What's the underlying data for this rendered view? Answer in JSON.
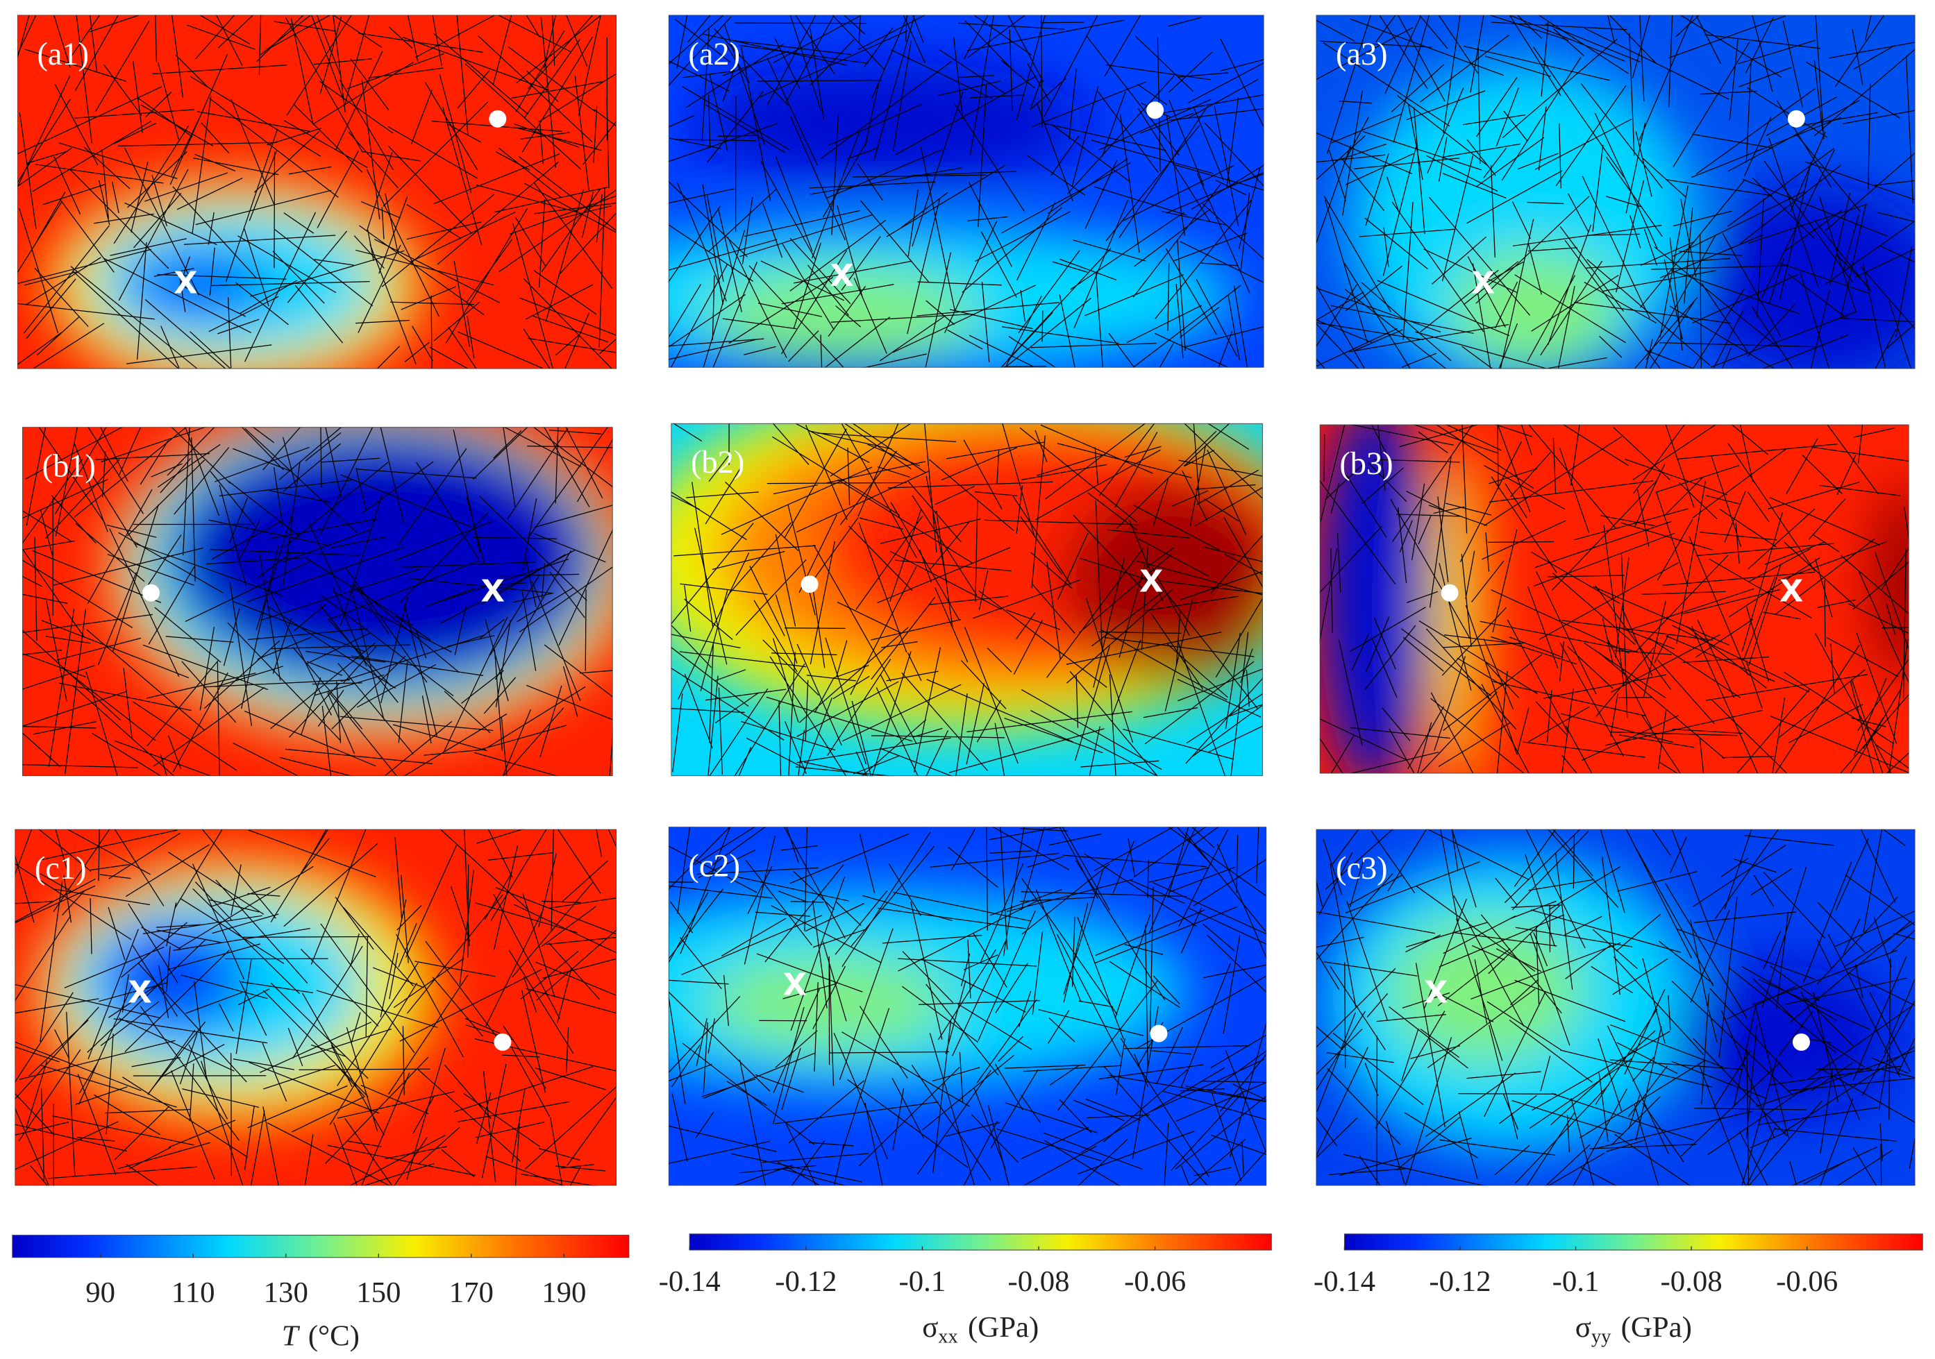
{
  "panels": [
    {
      "label": "(a1)",
      "cross": "x"
    },
    {
      "label": "(a2)",
      "cross": "x"
    },
    {
      "label": "(a3)",
      "cross": "x"
    },
    {
      "label": "(b1)",
      "cross": "x"
    },
    {
      "label": "(b2)",
      "cross": "x"
    },
    {
      "label": "(b3)",
      "cross": "x"
    },
    {
      "label": "(c1)",
      "cross": "x"
    },
    {
      "label": "(c2)",
      "cross": "x"
    },
    {
      "label": "(c3)",
      "cross": "x"
    }
  ],
  "colorbars": [
    {
      "symbol": "T",
      "unit": "(°C)",
      "lim": [
        71,
        204
      ],
      "ticks": [
        90,
        110,
        130,
        150,
        170,
        190
      ]
    },
    {
      "symbol": "σ",
      "subscript": "xx",
      "unit": "(GPa)",
      "lim": [
        -0.14,
        -0.04
      ],
      "ticks": [
        -0.14,
        -0.12,
        -0.1,
        -0.08,
        -0.06
      ]
    },
    {
      "symbol": "σ",
      "subscript": "yy",
      "unit": "(GPa)",
      "lim": [
        -0.14,
        -0.04
      ],
      "ticks": [
        -0.14,
        -0.12,
        -0.1,
        -0.08,
        -0.06
      ]
    }
  ]
}
